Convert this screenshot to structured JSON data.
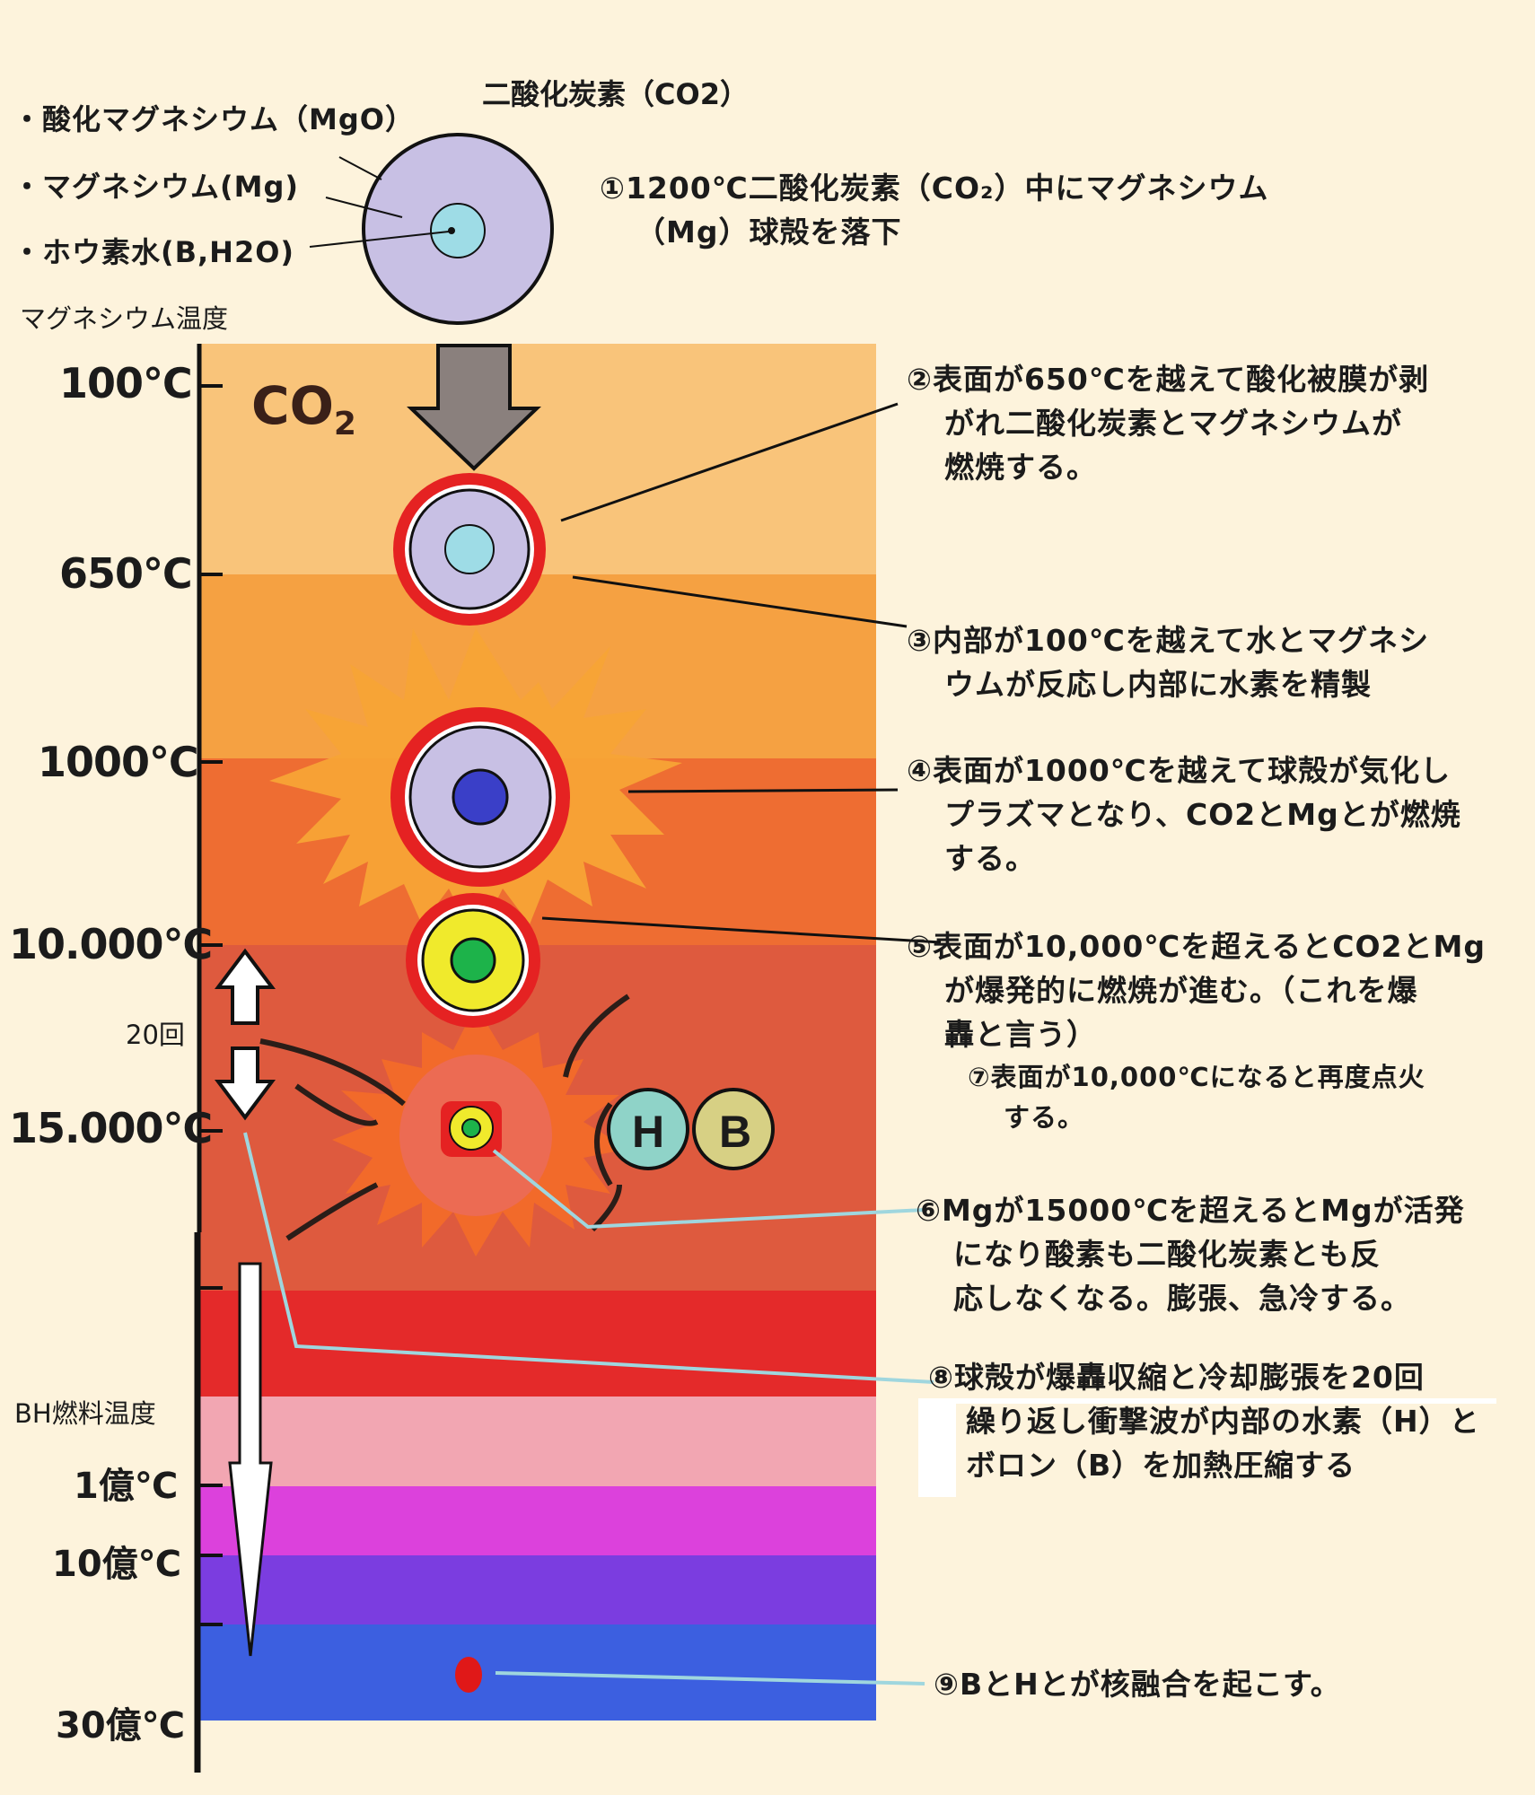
{
  "top_labels": {
    "co2": "二酸化炭素（CO2）",
    "mgo": "・酸化マグネシウム（MgO）",
    "mg": "・マグネシウム(Mg)",
    "boron_water": "・ホウ素水(B,H2O)"
  },
  "axis_titles": {
    "mg_temp": "マグネシウム温度",
    "bh_temp": "BH燃料温度"
  },
  "temperatures": {
    "t100": "100℃",
    "t650": "650℃",
    "t1000": "1000℃",
    "t10000": "10.000℃",
    "t15000": "15.000℃",
    "t1oku": "1億℃",
    "t10oku": "10億℃",
    "t30oku": "30億℃"
  },
  "cycle_label": "20回",
  "co2_zone_label": "CO",
  "co2_zone_subscript": "2",
  "particles": {
    "h": "H",
    "b": "B"
  },
  "steps": {
    "s1": [
      "①1200℃二酸化炭素（CO₂）中にマグネシウム",
      "（Mg）球殻を落下"
    ],
    "s2": [
      "②表面が650℃を越えて酸化被膜が剥",
      "がれ二酸化炭素とマグネシウムが",
      "燃焼する。"
    ],
    "s3": [
      "③内部が100℃を越えて水とマグネシ",
      "ウムが反応し内部に水素を精製"
    ],
    "s4": [
      "④表面が1000℃を越えて球殻が気化し",
      "プラズマとなり、CO2とMgとが燃焼",
      "する。"
    ],
    "s5": [
      "⑤表面が10,000℃を超えるとCO2とMg",
      "が爆発的に燃焼が進む。（これを爆",
      "轟と言う）"
    ],
    "s7": [
      "⑦表面が10,000℃になると再度点火",
      "する。"
    ],
    "s6": [
      "⑥Mgが15000℃を超えるとMgが活発",
      "になり酸素も二酸化炭素とも反",
      "応しなくなる。膨張、急冷する。"
    ],
    "s8": [
      "⑧球殻が爆轟収縮と冷却膨張を20回",
      "繰り返し衝撃波が内部の水素（H）と",
      "ボロン（B）を加熱圧縮する"
    ],
    "s9": [
      "⑨BとHとが核融合を起こす。"
    ]
  },
  "colors": {
    "background": "#fdf3dc",
    "band_100": "#f9c47a",
    "band_650": "#f5a142",
    "band_1000": "#ee6d32",
    "band_10000": "#de5a3e",
    "band_red": "#e42a2a",
    "band_pink": "#f2a6b2",
    "band_magenta": "#dc41dc",
    "band_violet": "#7b3de0",
    "band_blue": "#3c5fe0",
    "shell_lavender": "#c8c0e4",
    "core_cyan": "#9edce6",
    "ring_red": "#e52222",
    "core_blue": "#3a3fc8",
    "core_green": "#1db34a",
    "ring_yellow": "#f0ea2c",
    "particle_h": "#8fd3c8",
    "particle_b": "#d7d084",
    "leader_cyan": "#9fd6de"
  }
}
